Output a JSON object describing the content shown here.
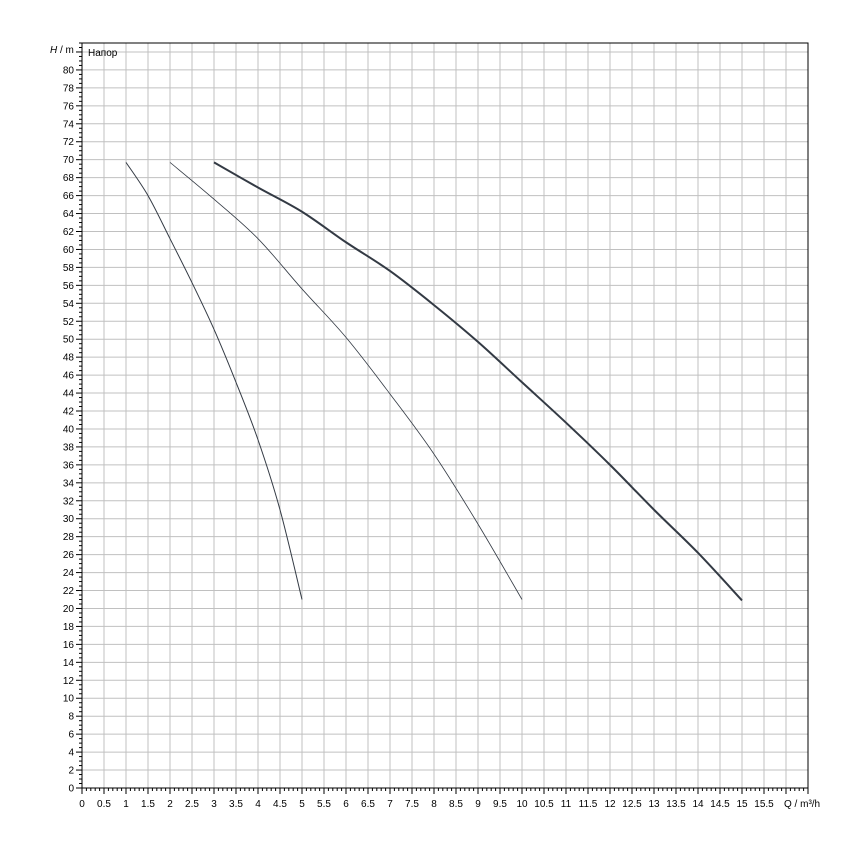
{
  "chart_data": {
    "type": "line",
    "title": "",
    "legend_label": "Напор",
    "ylabel_symbol": "H",
    "ylabel_unit": "/ m",
    "xlabel": "Q / m³/h",
    "xlim": [
      0,
      16.5
    ],
    "ylim": [
      0,
      83
    ],
    "x_ticks": [
      0,
      0.5,
      1,
      1.5,
      2,
      2.5,
      3,
      3.5,
      4,
      4.5,
      5,
      5.5,
      6,
      6.5,
      7,
      7.5,
      8,
      8.5,
      9,
      9.5,
      10,
      10.5,
      11,
      11.5,
      12,
      12.5,
      13,
      13.5,
      14,
      14.5,
      15,
      15.5
    ],
    "y_ticks": [
      0,
      2,
      4,
      6,
      8,
      10,
      12,
      14,
      16,
      18,
      20,
      22,
      24,
      26,
      28,
      30,
      32,
      34,
      36,
      38,
      40,
      42,
      44,
      46,
      48,
      50,
      52,
      54,
      56,
      58,
      60,
      62,
      64,
      66,
      68,
      70,
      72,
      74,
      76,
      78,
      80
    ],
    "grid": true,
    "line_color": "#333a44",
    "grid_color": "#c0c0c0",
    "series": [
      {
        "x": [
          1,
          1.5,
          2,
          2.5,
          3,
          3.5,
          4,
          4.5,
          5
        ],
        "y": [
          69.7,
          66,
          61.2,
          56.3,
          51.1,
          45.2,
          38.8,
          31,
          21
        ]
      },
      {
        "x": [
          2,
          3,
          4,
          5,
          6,
          7,
          8,
          9,
          10
        ],
        "y": [
          69.7,
          65.6,
          61.2,
          55.6,
          50.2,
          43.9,
          37.2,
          29.4,
          21
        ]
      },
      {
        "x": [
          3,
          4,
          5,
          6,
          7,
          8,
          9,
          10,
          11,
          12,
          13,
          14,
          15
        ],
        "y": [
          69.7,
          66.9,
          64.2,
          60.8,
          57.6,
          53.8,
          49.7,
          45.2,
          40.7,
          36,
          31,
          26.2,
          20.9
        ]
      }
    ]
  }
}
